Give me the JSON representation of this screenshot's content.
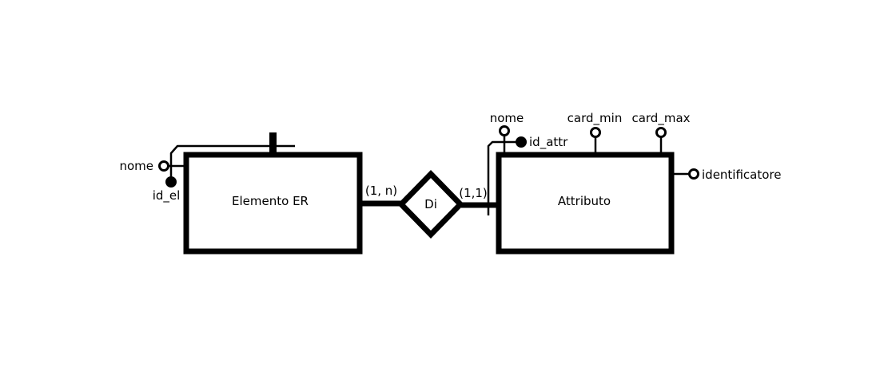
{
  "entities": [
    {
      "id": "elemento",
      "name": "Elemento ER"
    },
    {
      "id": "attributo",
      "name": "Attributo"
    }
  ],
  "relationships": [
    {
      "id": "di",
      "name": "Di",
      "cardinality_left": "(1, n)",
      "cardinality_right": "(1,1)"
    }
  ],
  "attributes": {
    "elemento": [
      {
        "name": "nome",
        "identifier": false
      },
      {
        "name": "id_el",
        "identifier": true
      }
    ],
    "attributo": [
      {
        "name": "nome",
        "identifier": false
      },
      {
        "name": "id_attr",
        "identifier": true
      },
      {
        "name": "card_min",
        "identifier": false
      },
      {
        "name": "card_max",
        "identifier": false
      },
      {
        "name": "identificatore",
        "identifier": false
      }
    ]
  }
}
